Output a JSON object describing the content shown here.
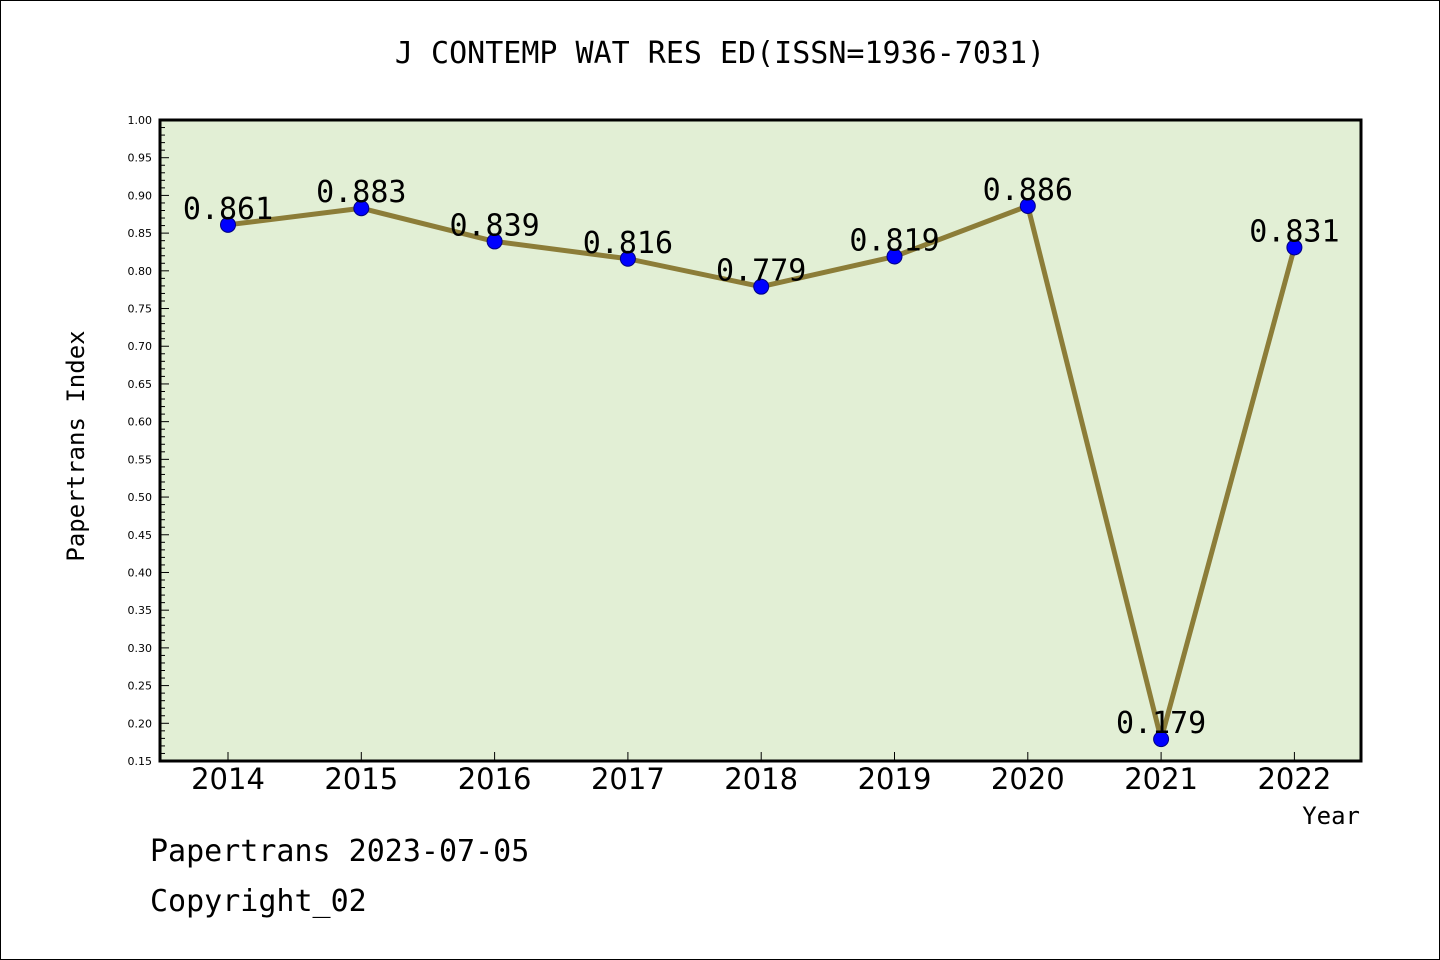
{
  "chart_data": {
    "type": "line",
    "title": "J CONTEMP WAT RES ED(ISSN=1936-7031)",
    "xlabel": "Year",
    "ylabel": "Papertrans Index",
    "categories": [
      "2014",
      "2015",
      "2016",
      "2017",
      "2018",
      "2019",
      "2020",
      "2021",
      "2022"
    ],
    "series": [
      {
        "values": [
          0.861,
          0.883,
          0.839,
          0.816,
          0.779,
          0.819,
          0.886,
          0.179,
          0.831
        ],
        "labels": [
          "0.861",
          "0.883",
          "0.839",
          "0.816",
          "0.779",
          "0.819",
          "0.886",
          "0.179",
          "0.831"
        ]
      }
    ],
    "ylim": [
      0.15,
      1.0
    ],
    "yticks": [
      "0.15",
      "0.20",
      "0.25",
      "0.30",
      "0.35",
      "0.40",
      "0.45",
      "0.50",
      "0.55",
      "0.60",
      "0.65",
      "0.70",
      "0.75",
      "0.80",
      "0.85",
      "0.90",
      "0.95",
      "1.00"
    ],
    "grid": false,
    "colors": {
      "plot_background": "#e2efd5",
      "line": "#8c7d38",
      "marker": "#0000ff"
    }
  },
  "footer": {
    "date": "Papertrans 2023-07-05",
    "copyright": "Copyright_02"
  }
}
